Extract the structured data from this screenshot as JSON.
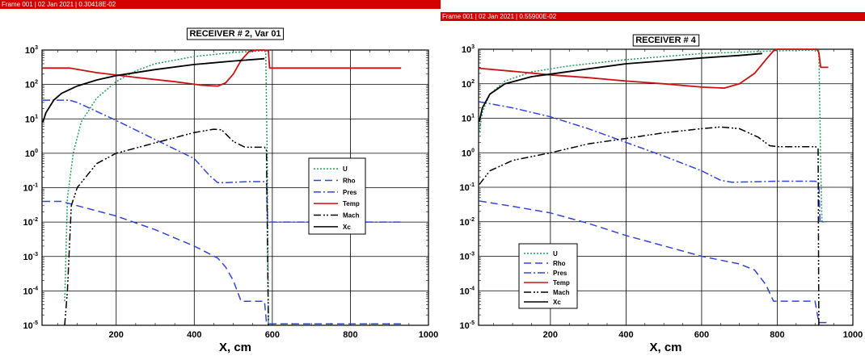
{
  "panels": [
    {
      "frame_bar": {
        "frame": "Frame 001",
        "date": "02 Jan 2021",
        "value": "0.30418E-02"
      }
    },
    {
      "frame_bar": {
        "frame": "Frame 001",
        "date": "02 Jan 2021",
        "value": "0.55900E-02"
      }
    }
  ],
  "chart_data": [
    {
      "type": "line",
      "title": "RECEIVER # 2, Var 01",
      "xlabel": "X, cm",
      "ylabel": "",
      "xlim": [
        10,
        1000
      ],
      "ylim": [
        1e-05,
        1000
      ],
      "y_scale": "log",
      "grid": true,
      "legend_position": "center-right",
      "x_ticks": [
        200,
        400,
        600,
        800,
        1000
      ],
      "y_ticks": [
        "10^-5",
        "10^-4",
        "10^-3",
        "10^-2",
        "10^-1",
        "10^0",
        "10^1",
        "10^2",
        "10^3"
      ],
      "series": [
        {
          "name": "U",
          "color": "#22a05a",
          "style": "dotted",
          "points": [
            [
              68,
              5e-05
            ],
            [
              75,
              0.05
            ],
            [
              90,
              1
            ],
            [
              110,
              8
            ],
            [
              150,
              40
            ],
            [
              200,
              120
            ],
            [
              250,
              250
            ],
            [
              300,
              400
            ],
            [
              400,
              650
            ],
            [
              500,
              850
            ],
            [
              575,
              950
            ],
            [
              583,
              900
            ],
            [
              587,
              0.5
            ],
            [
              590,
              1e-05
            ]
          ]
        },
        {
          "name": "Rho",
          "color": "#3344dd",
          "style": "dashed",
          "points": [
            [
              12,
              0.04
            ],
            [
              60,
              0.04
            ],
            [
              100,
              0.03
            ],
            [
              200,
              0.015
            ],
            [
              300,
              0.006
            ],
            [
              400,
              0.002
            ],
            [
              460,
              0.0009
            ],
            [
              480,
              0.0005
            ],
            [
              500,
              0.0002
            ],
            [
              520,
              5e-05
            ],
            [
              580,
              5e-05
            ],
            [
              585,
              1.2e-05
            ],
            [
              590,
              1.1e-05
            ],
            [
              930,
              1.1e-05
            ]
          ]
        },
        {
          "name": "Pres",
          "color": "#3344dd",
          "style": "dashdot",
          "points": [
            [
              12,
              35
            ],
            [
              80,
              35
            ],
            [
              100,
              30
            ],
            [
              200,
              9
            ],
            [
              300,
              2.5
            ],
            [
              400,
              0.7
            ],
            [
              440,
              0.22
            ],
            [
              460,
              0.14
            ],
            [
              480,
              0.14
            ],
            [
              540,
              0.15
            ],
            [
              580,
              0.15
            ],
            [
              585,
              0.14
            ],
            [
              588,
              0.01
            ],
            [
              592,
              0.01
            ],
            [
              930,
              0.01
            ]
          ]
        },
        {
          "name": "Temp",
          "color": "#cc1111",
          "style": "solid",
          "points": [
            [
              12,
              300
            ],
            [
              80,
              300
            ],
            [
              150,
              220
            ],
            [
              250,
              160
            ],
            [
              350,
              120
            ],
            [
              420,
              95
            ],
            [
              460,
              90
            ],
            [
              480,
              110
            ],
            [
              500,
              200
            ],
            [
              520,
              500
            ],
            [
              540,
              900
            ],
            [
              560,
              1000
            ],
            [
              580,
              1000
            ],
            [
              590,
              950
            ],
            [
              593,
              300
            ],
            [
              930,
              300
            ]
          ]
        },
        {
          "name": "Mach",
          "color": "#000000",
          "style": "dashdotdot",
          "points": [
            [
              68,
              1e-05
            ],
            [
              75,
              0.0001
            ],
            [
              85,
              0.03
            ],
            [
              100,
              0.1
            ],
            [
              150,
              0.5
            ],
            [
              200,
              1
            ],
            [
              300,
              2
            ],
            [
              400,
              4
            ],
            [
              450,
              5
            ],
            [
              470,
              4.8
            ],
            [
              500,
              2.2
            ],
            [
              530,
              1.5
            ],
            [
              580,
              1.5
            ],
            [
              585,
              1.2
            ],
            [
              590,
              1e-05
            ]
          ]
        },
        {
          "name": "Xc",
          "color": "#000000",
          "style": "solid",
          "points": [
            [
              12,
              8
            ],
            [
              20,
              15
            ],
            [
              40,
              35
            ],
            [
              60,
              55
            ],
            [
              100,
              90
            ],
            [
              150,
              135
            ],
            [
              200,
              180
            ],
            [
              300,
              270
            ],
            [
              400,
              380
            ],
            [
              500,
              480
            ],
            [
              580,
              560
            ]
          ]
        }
      ]
    },
    {
      "type": "line",
      "title": "RECEIVER # 4",
      "xlabel": "X, cm",
      "ylabel": "",
      "xlim": [
        10,
        1000
      ],
      "ylim": [
        1e-05,
        1000
      ],
      "y_scale": "log",
      "grid": true,
      "legend_position": "bottom-left",
      "x_ticks": [
        200,
        400,
        600,
        800,
        1000
      ],
      "y_ticks": [
        "10^-5",
        "10^-4",
        "10^-3",
        "10^-2",
        "10^-1",
        "10^0",
        "10^1",
        "10^2",
        "10^3"
      ],
      "series": [
        {
          "name": "U",
          "color": "#22a05a",
          "style": "dotted",
          "points": [
            [
              12,
              4
            ],
            [
              20,
              15
            ],
            [
              40,
              50
            ],
            [
              80,
              120
            ],
            [
              150,
              220
            ],
            [
              250,
              330
            ],
            [
              400,
              500
            ],
            [
              600,
              750
            ],
            [
              800,
              900
            ],
            [
              910,
              950
            ],
            [
              915,
              0.5
            ],
            [
              918,
              0.01
            ],
            [
              930,
              0.01
            ]
          ]
        },
        {
          "name": "Rho",
          "color": "#3344dd",
          "style": "dashed",
          "points": [
            [
              12,
              0.04
            ],
            [
              100,
              0.028
            ],
            [
              200,
              0.018
            ],
            [
              300,
              0.009
            ],
            [
              400,
              0.004
            ],
            [
              500,
              0.002
            ],
            [
              600,
              0.001
            ],
            [
              700,
              0.0006
            ],
            [
              740,
              0.0004
            ],
            [
              770,
              0.00015
            ],
            [
              790,
              5e-05
            ],
            [
              900,
              5e-05
            ],
            [
              910,
              1.2e-05
            ],
            [
              930,
              1.2e-05
            ]
          ]
        },
        {
          "name": "Pres",
          "color": "#3344dd",
          "style": "dashdot",
          "points": [
            [
              12,
              30
            ],
            [
              100,
              20
            ],
            [
              200,
              11
            ],
            [
              300,
              5
            ],
            [
              400,
              2
            ],
            [
              500,
              0.8
            ],
            [
              600,
              0.3
            ],
            [
              650,
              0.16
            ],
            [
              680,
              0.14
            ],
            [
              800,
              0.15
            ],
            [
              900,
              0.15
            ],
            [
              910,
              0.14
            ],
            [
              913,
              0.01
            ],
            [
              930,
              0.01
            ]
          ]
        },
        {
          "name": "Temp",
          "color": "#cc1111",
          "style": "solid",
          "points": [
            [
              12,
              280
            ],
            [
              100,
              230
            ],
            [
              200,
              180
            ],
            [
              300,
              150
            ],
            [
              400,
              120
            ],
            [
              500,
              100
            ],
            [
              600,
              80
            ],
            [
              660,
              75
            ],
            [
              700,
              100
            ],
            [
              740,
              200
            ],
            [
              770,
              500
            ],
            [
              790,
              900
            ],
            [
              800,
              1000
            ],
            [
              905,
              1000
            ],
            [
              910,
              800
            ],
            [
              915,
              300
            ],
            [
              935,
              300
            ]
          ]
        },
        {
          "name": "Mach",
          "color": "#000000",
          "style": "dashdotdot",
          "points": [
            [
              12,
              0.12
            ],
            [
              40,
              0.3
            ],
            [
              100,
              0.6
            ],
            [
              200,
              1
            ],
            [
              300,
              1.8
            ],
            [
              400,
              2.6
            ],
            [
              500,
              3.8
            ],
            [
              600,
              5
            ],
            [
              650,
              5.6
            ],
            [
              700,
              5
            ],
            [
              750,
              2.8
            ],
            [
              780,
              1.6
            ],
            [
              800,
              1.5
            ],
            [
              900,
              1.5
            ],
            [
              908,
              1.4
            ],
            [
              910,
              1e-05
            ]
          ]
        },
        {
          "name": "Xc",
          "color": "#000000",
          "style": "solid",
          "points": [
            [
              12,
              8
            ],
            [
              20,
              20
            ],
            [
              40,
              50
            ],
            [
              80,
              100
            ],
            [
              150,
              160
            ],
            [
              200,
              190
            ],
            [
              300,
              270
            ],
            [
              400,
              380
            ],
            [
              500,
              460
            ],
            [
              600,
              560
            ],
            [
              700,
              660
            ],
            [
              760,
              750
            ]
          ]
        }
      ]
    }
  ]
}
